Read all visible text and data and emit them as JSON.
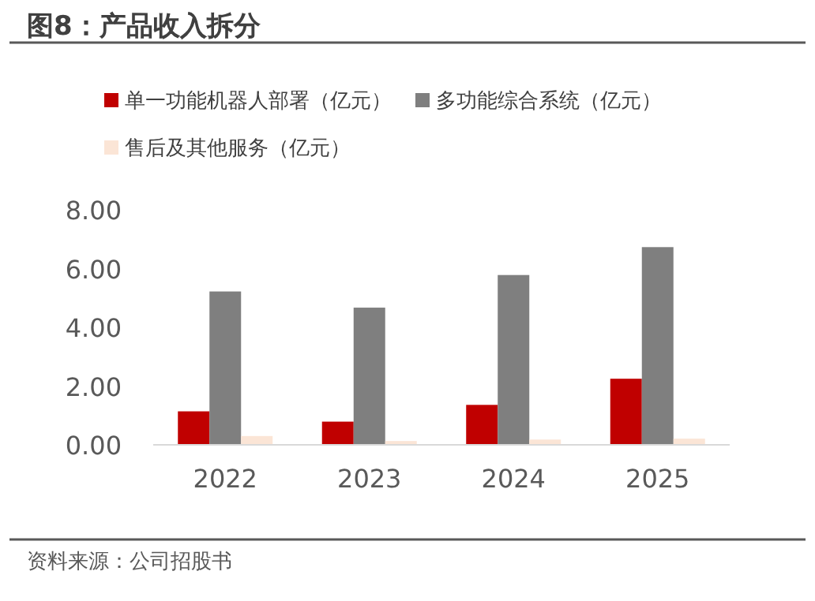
{
  "chart_data": {
    "type": "bar",
    "title": "图8：产品收入拆分",
    "categories": [
      "2022",
      "2023",
      "2024",
      "2025"
    ],
    "series": [
      {
        "name": "单一功能机器人部署（亿元）",
        "color": "#c00000",
        "values": [
          1.14,
          0.79,
          1.36,
          2.25
        ]
      },
      {
        "name": "多功能综合系统（亿元）",
        "color": "#7f7f7f",
        "values": [
          5.22,
          4.67,
          5.78,
          6.73
        ]
      },
      {
        "name": "售后及其他服务（亿元）",
        "color": "#fbe5d6",
        "values": [
          0.3,
          0.13,
          0.18,
          0.21
        ]
      }
    ],
    "ylim": [
      0,
      8
    ],
    "yticks": [
      {
        "value": 0,
        "label": "0.00"
      },
      {
        "value": 2,
        "label": "2.00"
      },
      {
        "value": 4,
        "label": "4.00"
      },
      {
        "value": 6,
        "label": "6.00"
      },
      {
        "value": 8,
        "label": "8.00"
      }
    ],
    "legend": "top",
    "annotations": [
      "资料来源：公司招股书"
    ]
  }
}
